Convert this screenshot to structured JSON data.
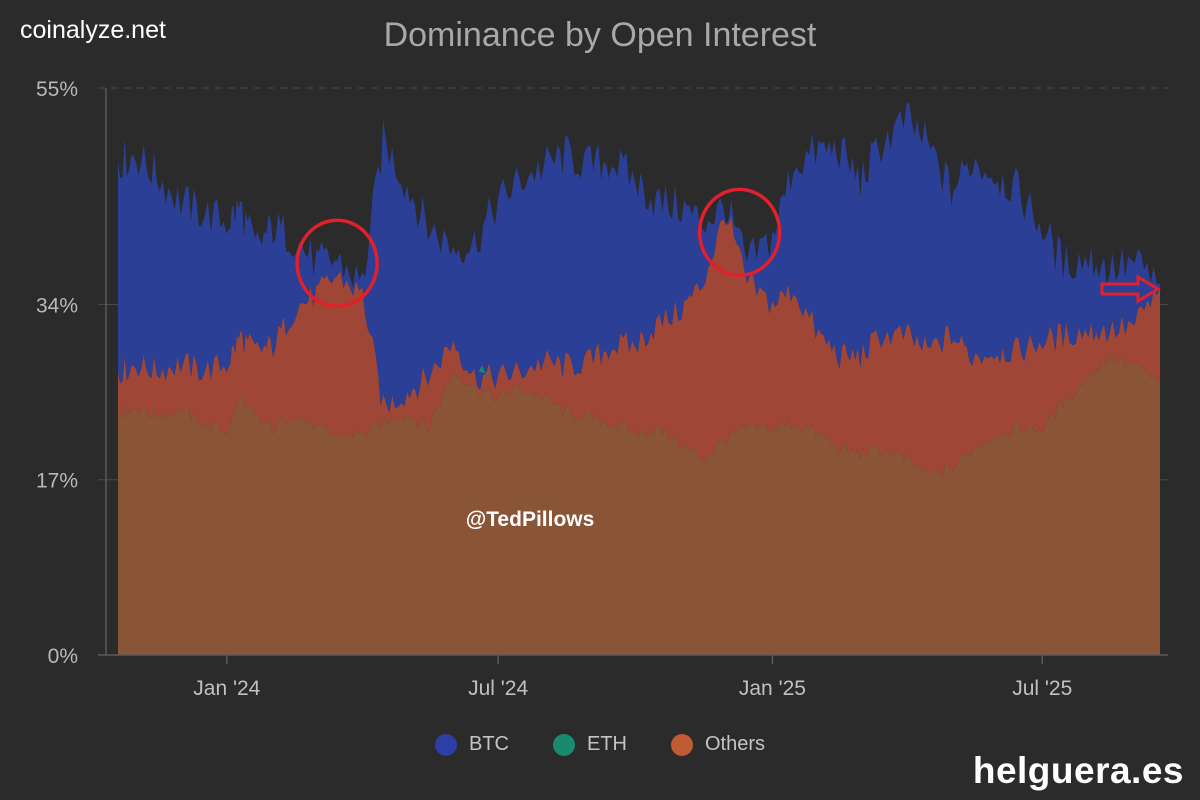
{
  "header": {
    "brand": "coinalyze.net"
  },
  "watermark": "helguera.es",
  "chart_data": {
    "type": "area",
    "stacked": true,
    "title": "Dominance by Open Interest",
    "x_range": [
      "2023-10-20",
      "2025-09-18"
    ],
    "ylim": [
      0,
      55
    ],
    "y_ticks": [
      0,
      17,
      34,
      55
    ],
    "y_tick_labels": [
      "0%",
      "17%",
      "34%",
      "55%"
    ],
    "x_ticks": [
      {
        "label": "Jan '24",
        "date": "2024-01-01"
      },
      {
        "label": "Jul '24",
        "date": "2024-07-01"
      },
      {
        "label": "Jan '25",
        "date": "2025-01-01"
      },
      {
        "label": "Jul '25",
        "date": "2025-07-01"
      }
    ],
    "grid": true,
    "legend_position": "bottom-center",
    "annotation": "@TedPillows",
    "highlight_circles": [
      {
        "date": "2024-03-15",
        "value": 38
      },
      {
        "date": "2024-12-10",
        "value": 41
      }
    ],
    "arrow_marker": {
      "date": "2025-09-18",
      "value": 35.5
    },
    "series": [
      {
        "name": "Others",
        "color": "#bf5b35",
        "points": [
          [
            "2023-10-20",
            23.5
          ],
          [
            "2023-11-01",
            24.0
          ],
          [
            "2023-11-15",
            23.3
          ],
          [
            "2023-12-01",
            23.8
          ],
          [
            "2023-12-15",
            22.6
          ],
          [
            "2024-01-01",
            21.7
          ],
          [
            "2024-01-10",
            25.0
          ],
          [
            "2024-01-20",
            23.0
          ],
          [
            "2024-02-01",
            22.0
          ],
          [
            "2024-02-15",
            23.5
          ],
          [
            "2024-03-01",
            22.0
          ],
          [
            "2024-03-15",
            21.3
          ],
          [
            "2024-04-01",
            21.5
          ],
          [
            "2024-04-15",
            22.5
          ],
          [
            "2024-05-01",
            23.5
          ],
          [
            "2024-05-15",
            22.0
          ],
          [
            "2024-06-01",
            27.5
          ],
          [
            "2024-06-15",
            26.0
          ],
          [
            "2024-07-01",
            25.0
          ],
          [
            "2024-07-15",
            26.0
          ],
          [
            "2024-08-01",
            25.0
          ],
          [
            "2024-08-15",
            23.5
          ],
          [
            "2024-09-01",
            23.0
          ],
          [
            "2024-09-15",
            22.5
          ],
          [
            "2024-10-01",
            21.5
          ],
          [
            "2024-10-15",
            22.0
          ],
          [
            "2024-11-01",
            20.5
          ],
          [
            "2024-11-15",
            19.0
          ],
          [
            "2024-12-01",
            21.0
          ],
          [
            "2024-12-15",
            22.0
          ],
          [
            "2025-01-01",
            22.0
          ],
          [
            "2025-01-15",
            22.5
          ],
          [
            "2025-02-01",
            21.5
          ],
          [
            "2025-02-15",
            20.0
          ],
          [
            "2025-03-01",
            19.5
          ],
          [
            "2025-03-15",
            20.0
          ],
          [
            "2025-04-01",
            19.0
          ],
          [
            "2025-04-15",
            17.5
          ],
          [
            "2025-05-01",
            18.0
          ],
          [
            "2025-05-15",
            20.0
          ],
          [
            "2025-06-01",
            21.5
          ],
          [
            "2025-06-15",
            22.0
          ],
          [
            "2025-07-01",
            22.0
          ],
          [
            "2025-07-15",
            24.5
          ],
          [
            "2025-08-01",
            27.0
          ],
          [
            "2025-08-15",
            29.0
          ],
          [
            "2025-09-01",
            28.0
          ],
          [
            "2025-09-18",
            26.5
          ]
        ]
      },
      {
        "name": "ETH",
        "color": "#1a8a6e",
        "points": [
          [
            "2023-10-20",
            4.0
          ],
          [
            "2023-11-01",
            4.2
          ],
          [
            "2023-11-15",
            4.3
          ],
          [
            "2023-12-01",
            4.5
          ],
          [
            "2023-12-15",
            5.0
          ],
          [
            "2024-01-01",
            6.5
          ],
          [
            "2024-01-10",
            6.0
          ],
          [
            "2024-01-20",
            6.5
          ],
          [
            "2024-02-01",
            8.0
          ],
          [
            "2024-02-15",
            10.0
          ],
          [
            "2024-03-01",
            13.0
          ],
          [
            "2024-03-15",
            15.5
          ],
          [
            "2024-04-01",
            13.5
          ],
          [
            "2024-04-15",
            1.5
          ],
          [
            "2024-05-01",
            2.0
          ],
          [
            "2024-05-15",
            5.0
          ],
          [
            "2024-06-01",
            3.0
          ],
          [
            "2024-06-15",
            1.0
          ],
          [
            "2024-07-01",
            2.0
          ],
          [
            "2024-07-15",
            1.5
          ],
          [
            "2024-08-01",
            3.5
          ],
          [
            "2024-08-15",
            4.5
          ],
          [
            "2024-09-01",
            5.5
          ],
          [
            "2024-09-15",
            7.5
          ],
          [
            "2024-10-01",
            8.5
          ],
          [
            "2024-10-15",
            10.0
          ],
          [
            "2024-11-01",
            13.0
          ],
          [
            "2024-11-15",
            17.0
          ],
          [
            "2024-12-01",
            22.0
          ],
          [
            "2024-12-15",
            14.0
          ],
          [
            "2025-01-01",
            12.0
          ],
          [
            "2025-01-15",
            13.0
          ],
          [
            "2025-02-01",
            9.5
          ],
          [
            "2025-02-15",
            9.0
          ],
          [
            "2025-03-01",
            9.5
          ],
          [
            "2025-03-15",
            11.0
          ],
          [
            "2025-04-01",
            12.0
          ],
          [
            "2025-04-15",
            12.0
          ],
          [
            "2025-05-01",
            13.0
          ],
          [
            "2025-05-15",
            9.0
          ],
          [
            "2025-06-01",
            8.0
          ],
          [
            "2025-06-15",
            7.5
          ],
          [
            "2025-07-01",
            8.5
          ],
          [
            "2025-07-15",
            6.5
          ],
          [
            "2025-08-01",
            4.5
          ],
          [
            "2025-08-15",
            2.5
          ],
          [
            "2025-09-01",
            4.0
          ],
          [
            "2025-09-18",
            9.0
          ]
        ]
      },
      {
        "name": "BTC",
        "color": "#2b3fa6",
        "points": [
          [
            "2023-10-20",
            20.5
          ],
          [
            "2023-11-01",
            20.3
          ],
          [
            "2023-11-15",
            19.0
          ],
          [
            "2023-12-01",
            15.7
          ],
          [
            "2023-12-15",
            15.4
          ],
          [
            "2024-01-01",
            13.8
          ],
          [
            "2024-01-10",
            12.5
          ],
          [
            "2024-01-20",
            10.0
          ],
          [
            "2024-02-01",
            11.5
          ],
          [
            "2024-02-15",
            7.0
          ],
          [
            "2024-03-01",
            3.0
          ],
          [
            "2024-03-15",
            1.5
          ],
          [
            "2024-04-01",
            1.0
          ],
          [
            "2024-04-15",
            26.0
          ],
          [
            "2024-05-01",
            20.0
          ],
          [
            "2024-05-15",
            14.5
          ],
          [
            "2024-06-01",
            9.0
          ],
          [
            "2024-06-15",
            13.0
          ],
          [
            "2024-07-01",
            17.0
          ],
          [
            "2024-07-15",
            18.5
          ],
          [
            "2024-08-01",
            19.0
          ],
          [
            "2024-08-15",
            20.5
          ],
          [
            "2024-09-01",
            19.0
          ],
          [
            "2024-09-15",
            18.0
          ],
          [
            "2024-10-01",
            16.0
          ],
          [
            "2024-10-15",
            12.0
          ],
          [
            "2024-11-01",
            10.0
          ],
          [
            "2024-11-15",
            6.0
          ],
          [
            "2024-12-01",
            0.5
          ],
          [
            "2024-12-15",
            2.0
          ],
          [
            "2025-01-01",
            6.5
          ],
          [
            "2025-01-15",
            12.0
          ],
          [
            "2025-02-01",
            18.0
          ],
          [
            "2025-02-15",
            20.0
          ],
          [
            "2025-03-01",
            17.0
          ],
          [
            "2025-03-15",
            18.5
          ],
          [
            "2025-04-01",
            21.0
          ],
          [
            "2025-04-15",
            20.0
          ],
          [
            "2025-05-01",
            14.0
          ],
          [
            "2025-05-15",
            19.0
          ],
          [
            "2025-06-01",
            17.0
          ],
          [
            "2025-06-15",
            15.5
          ],
          [
            "2025-07-01",
            11.0
          ],
          [
            "2025-07-15",
            7.0
          ],
          [
            "2025-08-01",
            7.0
          ],
          [
            "2025-08-15",
            6.0
          ],
          [
            "2025-09-01",
            6.0
          ],
          [
            "2025-09-18",
            0.5
          ]
        ]
      }
    ]
  }
}
